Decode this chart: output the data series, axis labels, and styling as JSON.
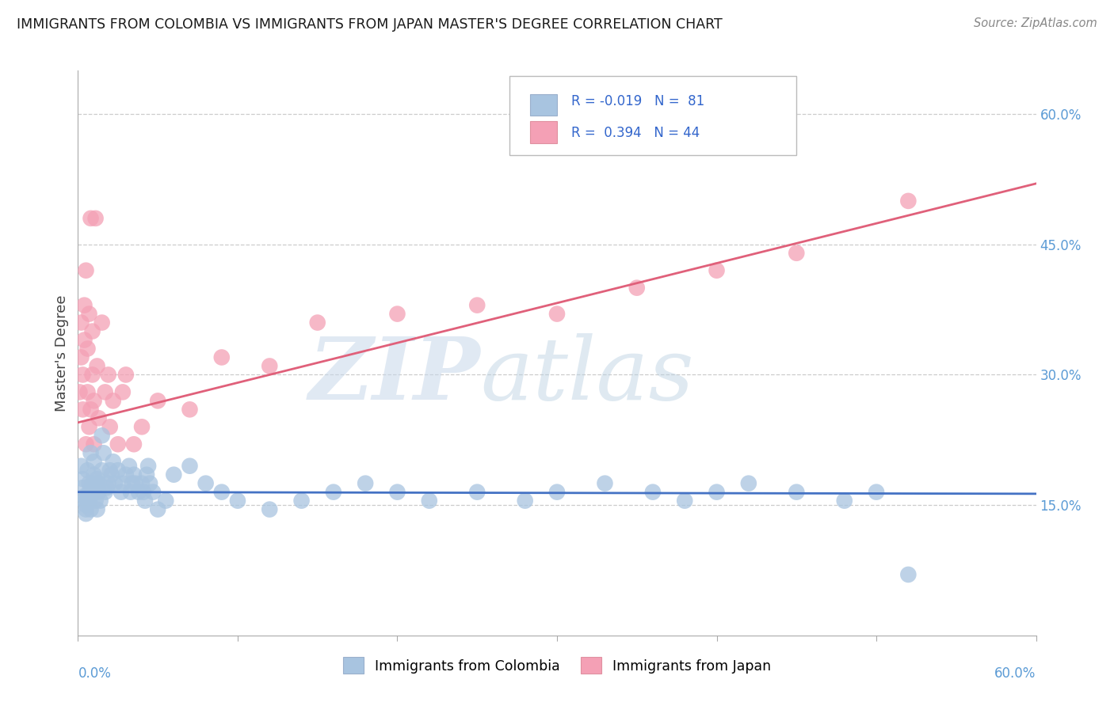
{
  "title": "IMMIGRANTS FROM COLOMBIA VS IMMIGRANTS FROM JAPAN MASTER'S DEGREE CORRELATION CHART",
  "source": "Source: ZipAtlas.com",
  "ylabel": "Master's Degree",
  "right_yticks": [
    0.15,
    0.3,
    0.45,
    0.6
  ],
  "right_yticklabels": [
    "15.0%",
    "30.0%",
    "45.0%",
    "60.0%"
  ],
  "legend_r1": "R = -0.019",
  "legend_n1": "N =  81",
  "legend_r2": "R =  0.394",
  "legend_n2": "N = 44",
  "color_colombia": "#a8c4e0",
  "color_japan": "#f4a0b5",
  "color_line_colombia": "#4472c4",
  "color_line_japan": "#e0607a",
  "xlim": [
    0.0,
    0.6
  ],
  "ylim": [
    0.0,
    0.65
  ],
  "colombia_x": [
    0.002,
    0.003,
    0.003,
    0.004,
    0.004,
    0.005,
    0.005,
    0.005,
    0.006,
    0.006,
    0.006,
    0.007,
    0.007,
    0.007,
    0.008,
    0.008,
    0.008,
    0.009,
    0.009,
    0.01,
    0.01,
    0.01,
    0.011,
    0.011,
    0.012,
    0.012,
    0.013,
    0.013,
    0.014,
    0.015,
    0.015,
    0.016,
    0.017,
    0.018,
    0.019,
    0.02,
    0.021,
    0.022,
    0.023,
    0.025,
    0.027,
    0.028,
    0.03,
    0.032,
    0.033,
    0.034,
    0.035,
    0.036,
    0.038,
    0.04,
    0.041,
    0.042,
    0.043,
    0.044,
    0.045,
    0.047,
    0.05,
    0.055,
    0.06,
    0.07,
    0.08,
    0.09,
    0.1,
    0.12,
    0.14,
    0.16,
    0.18,
    0.2,
    0.22,
    0.25,
    0.28,
    0.3,
    0.33,
    0.36,
    0.38,
    0.4,
    0.42,
    0.45,
    0.48,
    0.5,
    0.52
  ],
  "colombia_y": [
    0.195,
    0.18,
    0.17,
    0.16,
    0.155,
    0.15,
    0.145,
    0.14,
    0.16,
    0.155,
    0.19,
    0.175,
    0.165,
    0.155,
    0.145,
    0.16,
    0.21,
    0.17,
    0.175,
    0.165,
    0.2,
    0.185,
    0.175,
    0.155,
    0.145,
    0.18,
    0.175,
    0.165,
    0.155,
    0.23,
    0.19,
    0.21,
    0.165,
    0.17,
    0.175,
    0.19,
    0.185,
    0.2,
    0.175,
    0.19,
    0.165,
    0.175,
    0.185,
    0.195,
    0.165,
    0.175,
    0.185,
    0.175,
    0.165,
    0.175,
    0.165,
    0.155,
    0.185,
    0.195,
    0.175,
    0.165,
    0.145,
    0.155,
    0.185,
    0.195,
    0.175,
    0.165,
    0.155,
    0.145,
    0.155,
    0.165,
    0.175,
    0.165,
    0.155,
    0.165,
    0.155,
    0.165,
    0.175,
    0.165,
    0.155,
    0.165,
    0.175,
    0.165,
    0.155,
    0.165,
    0.07
  ],
  "japan_x": [
    0.001,
    0.002,
    0.002,
    0.003,
    0.003,
    0.004,
    0.004,
    0.005,
    0.005,
    0.006,
    0.006,
    0.007,
    0.007,
    0.008,
    0.008,
    0.009,
    0.009,
    0.01,
    0.01,
    0.011,
    0.012,
    0.013,
    0.015,
    0.017,
    0.019,
    0.02,
    0.022,
    0.025,
    0.028,
    0.03,
    0.035,
    0.04,
    0.05,
    0.07,
    0.09,
    0.12,
    0.15,
    0.2,
    0.25,
    0.3,
    0.35,
    0.4,
    0.45,
    0.52
  ],
  "japan_y": [
    0.28,
    0.32,
    0.36,
    0.3,
    0.26,
    0.38,
    0.34,
    0.42,
    0.22,
    0.28,
    0.33,
    0.37,
    0.24,
    0.48,
    0.26,
    0.35,
    0.3,
    0.27,
    0.22,
    0.48,
    0.31,
    0.25,
    0.36,
    0.28,
    0.3,
    0.24,
    0.27,
    0.22,
    0.28,
    0.3,
    0.22,
    0.24,
    0.27,
    0.26,
    0.32,
    0.31,
    0.36,
    0.37,
    0.38,
    0.37,
    0.4,
    0.42,
    0.44,
    0.5
  ],
  "col_trend_x": [
    0.0,
    0.6
  ],
  "col_trend_y": [
    0.165,
    0.163
  ],
  "jap_trend_x": [
    0.0,
    0.6
  ],
  "jap_trend_y": [
    0.245,
    0.52
  ]
}
